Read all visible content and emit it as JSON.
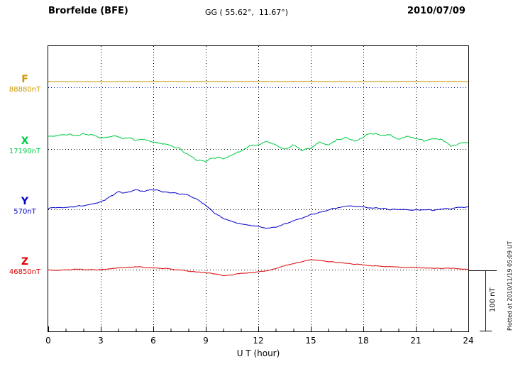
{
  "header": {
    "station": "Brorfelde (BFE)",
    "coords": "GG ( 55.62°,  11.67°)",
    "date": "2010/07/09"
  },
  "side": {
    "scale_label": "100 nT",
    "plotted_at": "Plotted at 2010/11/19 05:09 UT"
  },
  "chart_data": {
    "type": "line",
    "title": "Brorfelde (BFE)",
    "xlabel": "U T (hour)",
    "x_range": [
      0,
      24
    ],
    "x_ticks": [
      0,
      3,
      6,
      9,
      12,
      15,
      18,
      21,
      24
    ],
    "minor_tick_step": 1,
    "scale_bar_nT": 100,
    "grid": "dotted-vertical",
    "series": [
      {
        "name": "F",
        "baseline_label": "88880nT",
        "color": "#cc9900",
        "baseline_color": "#0000bb",
        "baseline_frac": 0.144,
        "noise": 0.25,
        "x": [
          0,
          3,
          6,
          9,
          12,
          15,
          18,
          21,
          24
        ],
        "values": [
          9.5,
          9.3,
          9.6,
          9.4,
          9.5,
          9.6,
          9.4,
          9.5,
          9.5
        ]
      },
      {
        "name": "X",
        "baseline_label": "17190nT",
        "color": "#00cc44",
        "baseline_color": "#000000",
        "baseline_frac": 0.361,
        "noise": 1.6,
        "x": [
          0,
          0.5,
          1,
          1.5,
          2,
          2.5,
          3,
          3.5,
          4,
          4.5,
          5,
          5.5,
          6,
          6.5,
          7,
          7.5,
          8,
          8.5,
          9,
          9.5,
          10,
          10.5,
          11,
          11.5,
          12,
          12.5,
          13,
          13.5,
          14,
          14.5,
          15,
          15.5,
          16,
          16.5,
          17,
          17.5,
          18,
          18.5,
          19,
          19.5,
          20,
          20.5,
          21,
          21.5,
          22,
          22.5,
          23,
          23.5,
          24
        ],
        "values": [
          21,
          23,
          24,
          22,
          26,
          24,
          18,
          21,
          20,
          18,
          16,
          17,
          12,
          10,
          6,
          0,
          -9,
          -18,
          -20,
          -14,
          -16,
          -9,
          -2,
          6,
          8,
          12,
          6,
          0,
          6,
          -2,
          2,
          12,
          6,
          14,
          18,
          12,
          21,
          26,
          21,
          24,
          18,
          20,
          16,
          14,
          18,
          15,
          6,
          9,
          12
        ]
      },
      {
        "name": "Y",
        "baseline_label": "570nT",
        "color": "#0000cc",
        "baseline_color": "#000000",
        "baseline_frac": 0.572,
        "noise": 1.0,
        "x": [
          0,
          0.5,
          1,
          1.5,
          2,
          2.5,
          3,
          3.5,
          4,
          4.5,
          5,
          5.5,
          6,
          6.5,
          7,
          7.5,
          8,
          8.5,
          9,
          9.5,
          10,
          10.5,
          11,
          11.5,
          12,
          12.5,
          13,
          13.5,
          14,
          14.5,
          15,
          15.5,
          16,
          16.5,
          17,
          17.5,
          18,
          18.5,
          19,
          19.5,
          20,
          20.5,
          21,
          21.5,
          22,
          22.5,
          23,
          23.5,
          24
        ],
        "values": [
          2.4,
          3,
          3.5,
          4.5,
          5.9,
          8,
          11.8,
          20,
          29,
          27,
          32,
          30,
          33,
          29,
          27,
          26,
          23.5,
          17,
          6,
          -6,
          -15,
          -20,
          -23.5,
          -26,
          -29,
          -32,
          -29,
          -25,
          -20,
          -15,
          -9,
          -5,
          -1,
          2,
          4.7,
          5.5,
          3.5,
          2.5,
          1,
          0,
          -1,
          -0.5,
          -1,
          -1.5,
          -1,
          0,
          1,
          2.5,
          3.5
        ]
      },
      {
        "name": "Z",
        "baseline_label": "46850nT",
        "color": "#dd0000",
        "baseline_color": "#000000",
        "baseline_frac": 0.784,
        "noise": 0.7,
        "x": [
          0,
          0.5,
          1,
          1.5,
          2,
          2.5,
          3,
          3.5,
          4,
          4.5,
          5,
          5.5,
          6,
          6.5,
          7,
          7.5,
          8,
          8.5,
          9,
          9.5,
          10,
          10.5,
          11,
          11.5,
          12,
          12.5,
          13,
          13.5,
          14,
          14.5,
          15,
          15.5,
          16,
          16.5,
          17,
          17.5,
          18,
          18.5,
          19,
          19.5,
          20,
          20.5,
          21,
          21.5,
          22,
          22.5,
          23,
          23.5,
          24
        ],
        "values": [
          -1,
          -0.5,
          0,
          0.5,
          1,
          0.5,
          0,
          2,
          3.5,
          4,
          4.7,
          4,
          3.5,
          2.5,
          1,
          -0.5,
          -2.4,
          -3.5,
          -4.7,
          -7,
          -9.4,
          -8,
          -5.9,
          -4.5,
          -3.5,
          -1,
          2.4,
          6.5,
          10.6,
          13.5,
          16.5,
          15.5,
          14,
          12.5,
          10.6,
          9.5,
          8,
          7,
          6,
          5.5,
          4.7,
          4,
          3.5,
          3,
          2.4,
          2.4,
          2.4,
          1.5,
          1
        ]
      }
    ]
  }
}
